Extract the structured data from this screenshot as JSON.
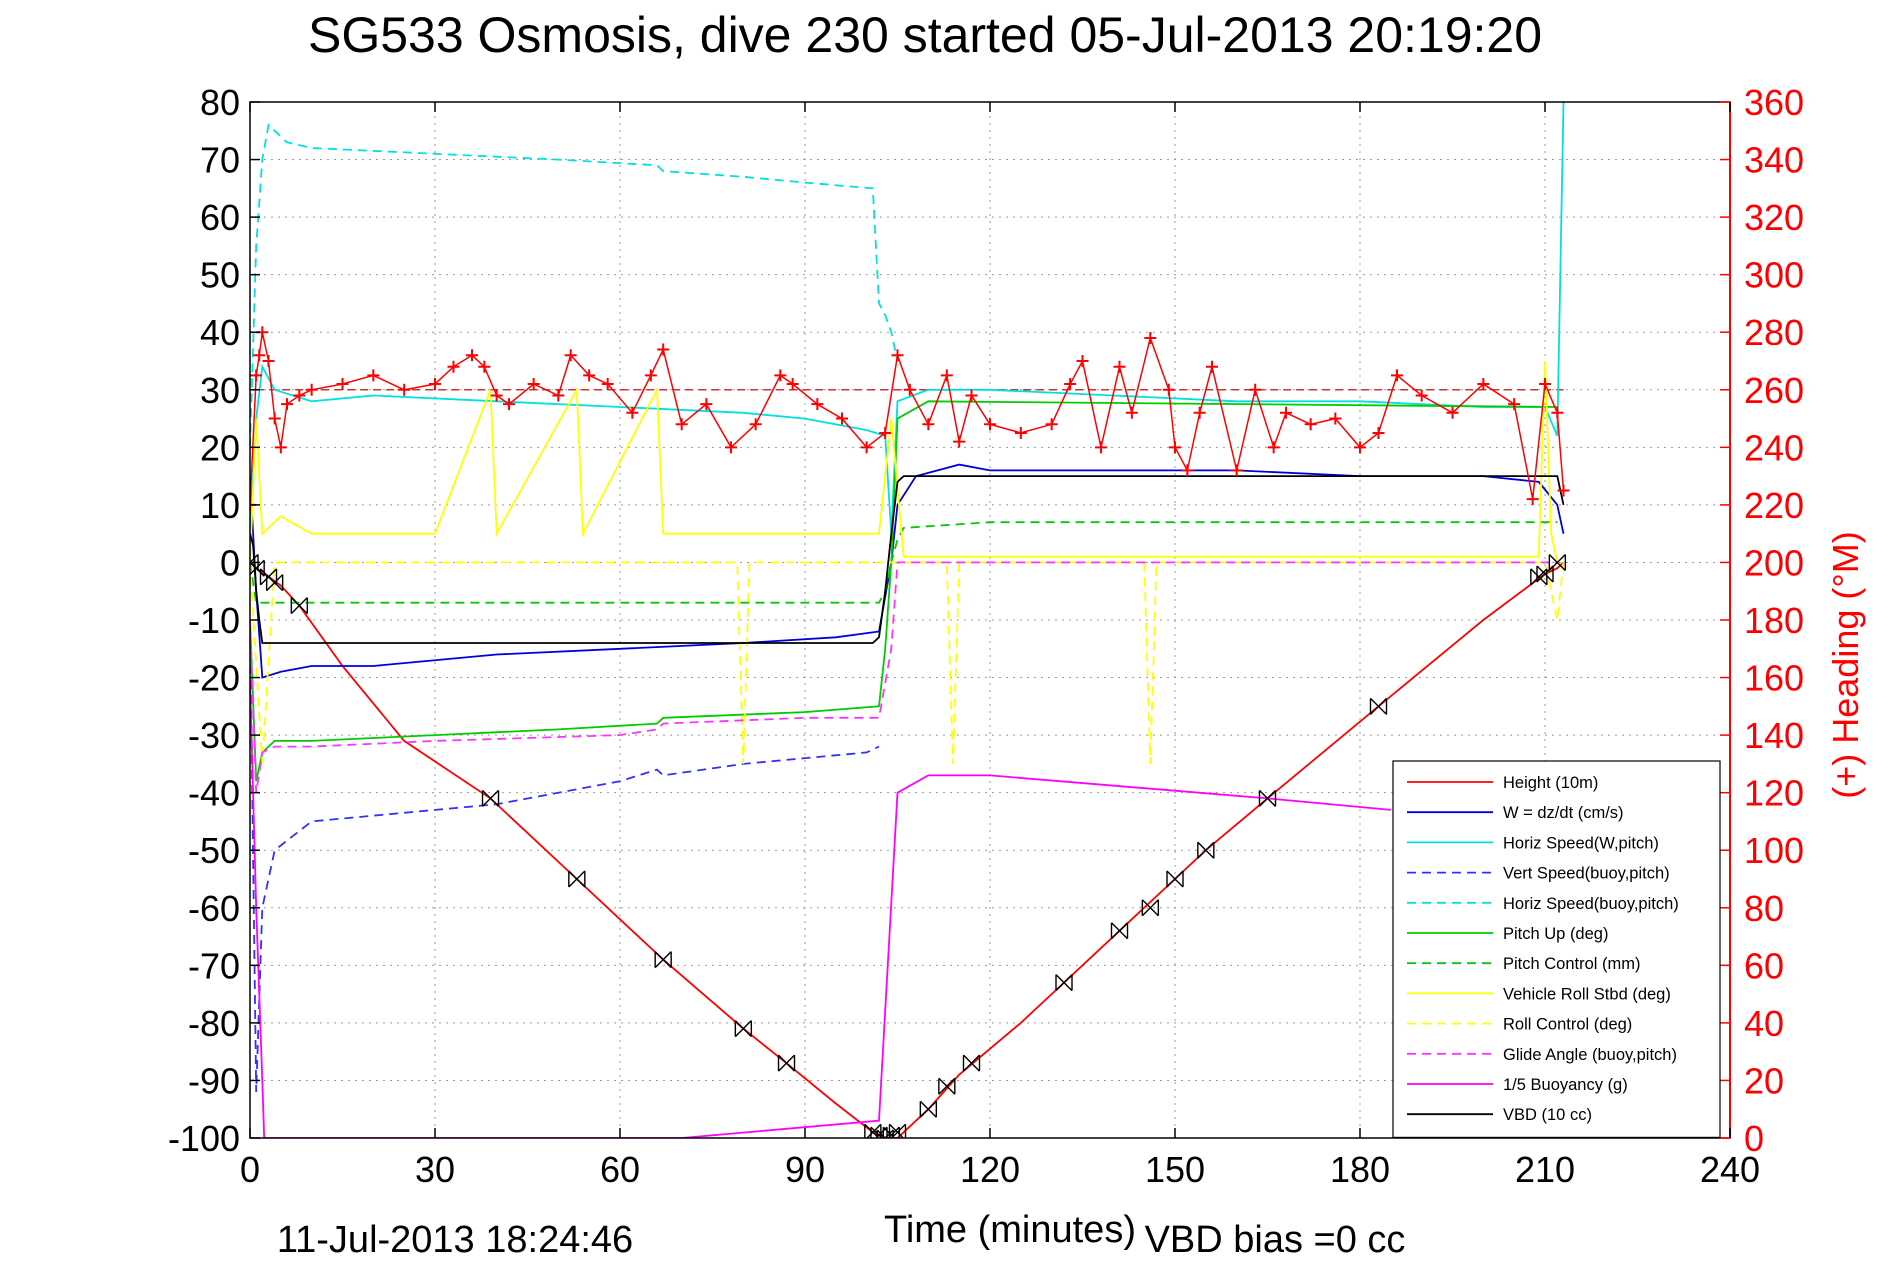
{
  "chart_data": {
    "type": "line",
    "title": "SG533 Osmosis, dive 230 started 05-Jul-2013 20:19:20",
    "xlabel": "Time (minutes)",
    "ylabel": "",
    "y2label": "(+) Heading (°M)",
    "footer_date": "11-Jul-2013 18:24:46",
    "footer_note": "VBD bias =0 cc",
    "xlim": [
      0,
      240
    ],
    "ylim": [
      -100,
      80
    ],
    "y2lim": [
      0,
      360
    ],
    "xticks": [
      0,
      30,
      60,
      90,
      120,
      150,
      180,
      210,
      240
    ],
    "yticks": [
      -100,
      -90,
      -80,
      -70,
      -60,
      -50,
      -40,
      -30,
      -20,
      -10,
      0,
      10,
      20,
      30,
      40,
      50,
      60,
      70,
      80
    ],
    "y2ticks": [
      0,
      20,
      40,
      60,
      80,
      100,
      120,
      140,
      160,
      180,
      200,
      220,
      240,
      260,
      280,
      300,
      320,
      340,
      360
    ],
    "grid": true,
    "legend_position": "bottom-right",
    "colors": {
      "heading_axis": "#ff0000",
      "heading_marks": "#ff0000"
    },
    "series": [
      {
        "name": "Height (10m)",
        "color": "#ff0000",
        "dash": "solid",
        "axis": "left",
        "x": [
          0,
          1,
          3,
          5,
          8,
          15,
          25,
          39,
          53,
          67,
          80,
          87,
          95,
          101,
          103,
          105,
          110,
          115,
          125,
          132,
          141,
          146,
          150,
          155,
          165,
          183,
          200,
          210,
          212,
          213
        ],
        "y": [
          0,
          -1,
          -2.5,
          -4,
          -7.5,
          -18,
          -31,
          -41,
          -55,
          -69,
          -81,
          -87,
          -94,
          -99,
          -100,
          -100,
          -95,
          -89,
          -80,
          -73,
          -64,
          -59,
          -55,
          -50,
          -41,
          -25,
          -10,
          -2,
          -1,
          0
        ]
      },
      {
        "name": "W = dz/dt (cm/s)",
        "color": "#0000dd",
        "dash": "solid",
        "axis": "left",
        "x": [
          0,
          1,
          2,
          5,
          10,
          20,
          40,
          60,
          80,
          95,
          102,
          104,
          105,
          108,
          115,
          120,
          140,
          160,
          180,
          200,
          209,
          212,
          213
        ],
        "y": [
          15,
          -5,
          -20,
          -19,
          -18,
          -18,
          -16,
          -15,
          -14,
          -13,
          -12,
          0,
          10,
          15,
          17,
          16,
          16,
          16,
          15,
          15,
          14,
          10,
          5
        ]
      },
      {
        "name": "Horiz Speed(W,pitch)",
        "color": "#00e0e0",
        "dash": "solid",
        "axis": "left",
        "x": [
          0,
          1,
          2,
          4,
          10,
          20,
          40,
          60,
          80,
          90,
          100,
          103,
          104,
          105,
          110,
          120,
          140,
          160,
          180,
          200,
          210,
          212,
          213
        ],
        "y": [
          5,
          25,
          34,
          30,
          28,
          29,
          28,
          27,
          26,
          25,
          23,
          22,
          5,
          28,
          30,
          30,
          29,
          28,
          28,
          27,
          27,
          22,
          80
        ]
      },
      {
        "name": "Vert Speed(buoy,pitch)",
        "color": "#3030ff",
        "dash": "dashed",
        "axis": "left",
        "x": [
          0,
          1,
          2,
          4,
          10,
          40,
          60,
          66,
          67,
          80,
          100,
          102
        ],
        "y": [
          -10,
          -92,
          -60,
          -50,
          -45,
          -42,
          -38,
          -36,
          -37,
          -35,
          -33,
          -32
        ]
      },
      {
        "name": "Horiz Speed(buoy,pitch)",
        "color": "#00e0e0",
        "dash": "dashed",
        "axis": "left",
        "x": [
          0,
          1,
          2,
          3,
          4,
          6,
          10,
          30,
          50,
          66,
          67,
          80,
          90,
          101,
          102,
          103,
          104,
          105
        ],
        "y": [
          20,
          55,
          70,
          76,
          75,
          73,
          72,
          71,
          70,
          69,
          68,
          67,
          66,
          65,
          45,
          43,
          40,
          35
        ]
      },
      {
        "name": "Pitch Up (deg)",
        "color": "#00cc00",
        "dash": "solid",
        "axis": "left",
        "x": [
          0,
          1,
          2,
          4,
          10,
          30,
          50,
          66,
          67,
          90,
          102,
          103,
          104,
          105,
          110,
          212
        ],
        "y": [
          -10,
          -38,
          -33,
          -31,
          -31,
          -30,
          -29,
          -28,
          -27,
          -26,
          -25,
          -15,
          0,
          25,
          28,
          27
        ]
      },
      {
        "name": "Pitch Control (mm)",
        "color": "#00cc00",
        "dash": "dashed",
        "axis": "left",
        "x": [
          0,
          1,
          2,
          102,
          103,
          104,
          105,
          106,
          120,
          212
        ],
        "y": [
          0,
          -7,
          -7,
          -7,
          -5,
          0,
          4,
          6,
          7,
          7
        ]
      },
      {
        "name": "Vehicle Roll Stbd (deg)",
        "color": "#ffff00",
        "dash": "solid",
        "axis": "left",
        "x": [
          0,
          1,
          2,
          5,
          10,
          30,
          39,
          40,
          53,
          54,
          66,
          67,
          80,
          90,
          100,
          102,
          104,
          106,
          110,
          140,
          180,
          209,
          210,
          211,
          212
        ],
        "y": [
          0,
          25,
          5,
          8,
          5,
          5,
          30,
          5,
          30,
          5,
          30,
          5,
          5,
          5,
          5,
          5,
          25,
          1,
          1,
          1,
          1,
          1,
          35,
          5,
          0
        ]
      },
      {
        "name": "Roll Control (deg)",
        "color": "#ffff00",
        "dash": "dashed",
        "axis": "left",
        "x": [
          0,
          2,
          4,
          20,
          60,
          79,
          80,
          81,
          102,
          104,
          105,
          113,
          114,
          115,
          145,
          146,
          147,
          210,
          212,
          213
        ],
        "y": [
          0,
          -35,
          0,
          0,
          0,
          0,
          -35,
          0,
          0,
          0,
          0,
          0,
          -35,
          0,
          0,
          -35,
          0,
          0,
          -10,
          0
        ]
      },
      {
        "name": "Glide Angle (buoy,pitch)",
        "color": "#ff33ff",
        "dash": "dashed",
        "axis": "left",
        "x": [
          0,
          1,
          2,
          4,
          10,
          30,
          60,
          66,
          67,
          90,
          102,
          104,
          105,
          212
        ],
        "y": [
          -10,
          -40,
          -33,
          -32,
          -32,
          -31,
          -30,
          -29,
          -28,
          -27,
          -27,
          -15,
          0,
          0
        ]
      },
      {
        "name": "1/5 Buoyancy (g)",
        "color": "#ff00ff",
        "dash": "solid",
        "axis": "left",
        "x": [
          0,
          1,
          2,
          2.3,
          70,
          102,
          105,
          110,
          120,
          165,
          185
        ],
        "y": [
          -20,
          -60,
          -90,
          -100,
          -100,
          -97,
          -40,
          -37,
          -37,
          -41,
          -43
        ]
      },
      {
        "name": "VBD (10 cc)",
        "color": "#000000",
        "dash": "solid",
        "axis": "left",
        "x": [
          0,
          0.5,
          1,
          1.5,
          2,
          100,
          101,
          102,
          103,
          104,
          105,
          106,
          165,
          166,
          212,
          213
        ],
        "y": [
          5,
          3,
          -5,
          -10,
          -14,
          -14,
          -14,
          -13,
          -5,
          5,
          14,
          15,
          15,
          15,
          15,
          10
        ]
      }
    ],
    "heading_series": {
      "name": "(+) Heading (°M)",
      "axis": "right",
      "marker": "+",
      "color": "#ff0000",
      "x": [
        0,
        1,
        1.5,
        2,
        3,
        4,
        5,
        6,
        8,
        10,
        15,
        20,
        25,
        30,
        33,
        36,
        38,
        40,
        42,
        46,
        50,
        52,
        55,
        58,
        62,
        65,
        67,
        70,
        74,
        78,
        82,
        86,
        88,
        92,
        96,
        100,
        103,
        105,
        107,
        110,
        113,
        115,
        117,
        120,
        125,
        130,
        133,
        135,
        138,
        141,
        143,
        146,
        149,
        150,
        152,
        154,
        156,
        160,
        163,
        166,
        168,
        172,
        176,
        180,
        183,
        186,
        190,
        195,
        200,
        205,
        208,
        210,
        212,
        213
      ],
      "y": [
        220,
        265,
        272,
        280,
        270,
        250,
        240,
        255,
        258,
        260,
        262,
        265,
        260,
        262,
        268,
        272,
        268,
        258,
        255,
        262,
        258,
        272,
        265,
        262,
        252,
        265,
        274,
        248,
        255,
        240,
        248,
        265,
        262,
        255,
        250,
        240,
        245,
        272,
        260,
        248,
        265,
        242,
        258,
        248,
        245,
        248,
        262,
        270,
        240,
        268,
        252,
        278,
        260,
        240,
        232,
        252,
        268,
        232,
        260,
        240,
        252,
        248,
        250,
        240,
        245,
        265,
        258,
        252,
        262,
        255,
        222,
        262,
        252,
        225
      ]
    },
    "markers": {
      "name": "dive markers",
      "x": [
        0,
        1,
        3,
        4,
        8,
        39,
        53,
        67,
        80,
        87,
        101,
        102,
        103,
        104,
        105,
        110,
        113,
        117,
        132,
        141,
        146,
        150,
        155,
        165,
        183,
        209,
        210,
        212
      ],
      "y": [
        0,
        -1,
        -2.5,
        -3.5,
        -7.5,
        -41,
        -55,
        -69,
        -81,
        -87,
        -99,
        -99.5,
        -100,
        -99.5,
        -99,
        -95,
        -91,
        -87,
        -73,
        -64,
        -60,
        -55,
        -50,
        -41,
        -25,
        -2.5,
        -2,
        0
      ]
    },
    "reference_lines": {
      "heading_dashed": 260,
      "zero_dashed": 0
    }
  }
}
